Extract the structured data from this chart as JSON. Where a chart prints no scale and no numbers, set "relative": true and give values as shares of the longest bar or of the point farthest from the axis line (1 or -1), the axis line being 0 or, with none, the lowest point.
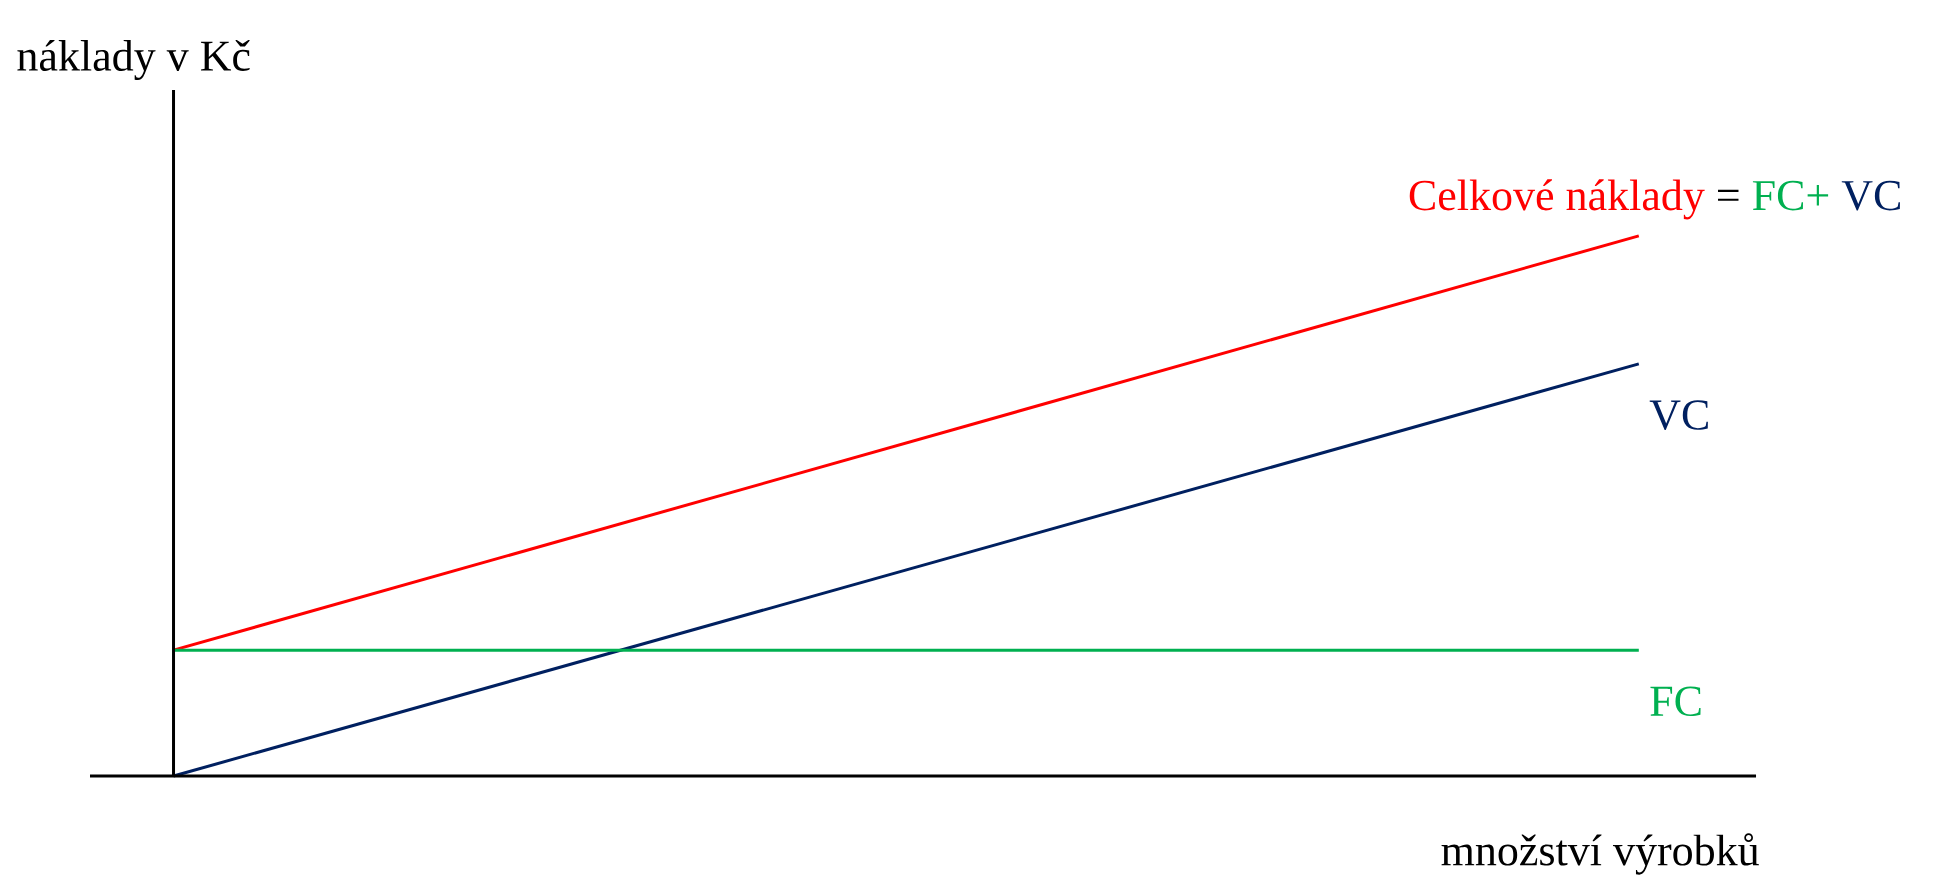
{
  "chart_data": {
    "type": "line",
    "relative": true,
    "ylabel": "náklady v Kč",
    "xlabel": "množství výrobků",
    "categories": [
      null,
      null
    ],
    "marker": "none",
    "line_style": "solid",
    "series": [
      {
        "name": "Celkové náklady",
        "color": "#ff0000",
        "values": [
          0.233,
          1
        ]
      },
      {
        "name": "VC",
        "color": "#002060",
        "values": [
          0,
          0.763
        ]
      },
      {
        "name": "FC",
        "color": "#00b050",
        "values": [
          0.233,
          0.233
        ]
      }
    ],
    "annotations": [
      "=",
      "FC+",
      "VC"
    ]
  }
}
